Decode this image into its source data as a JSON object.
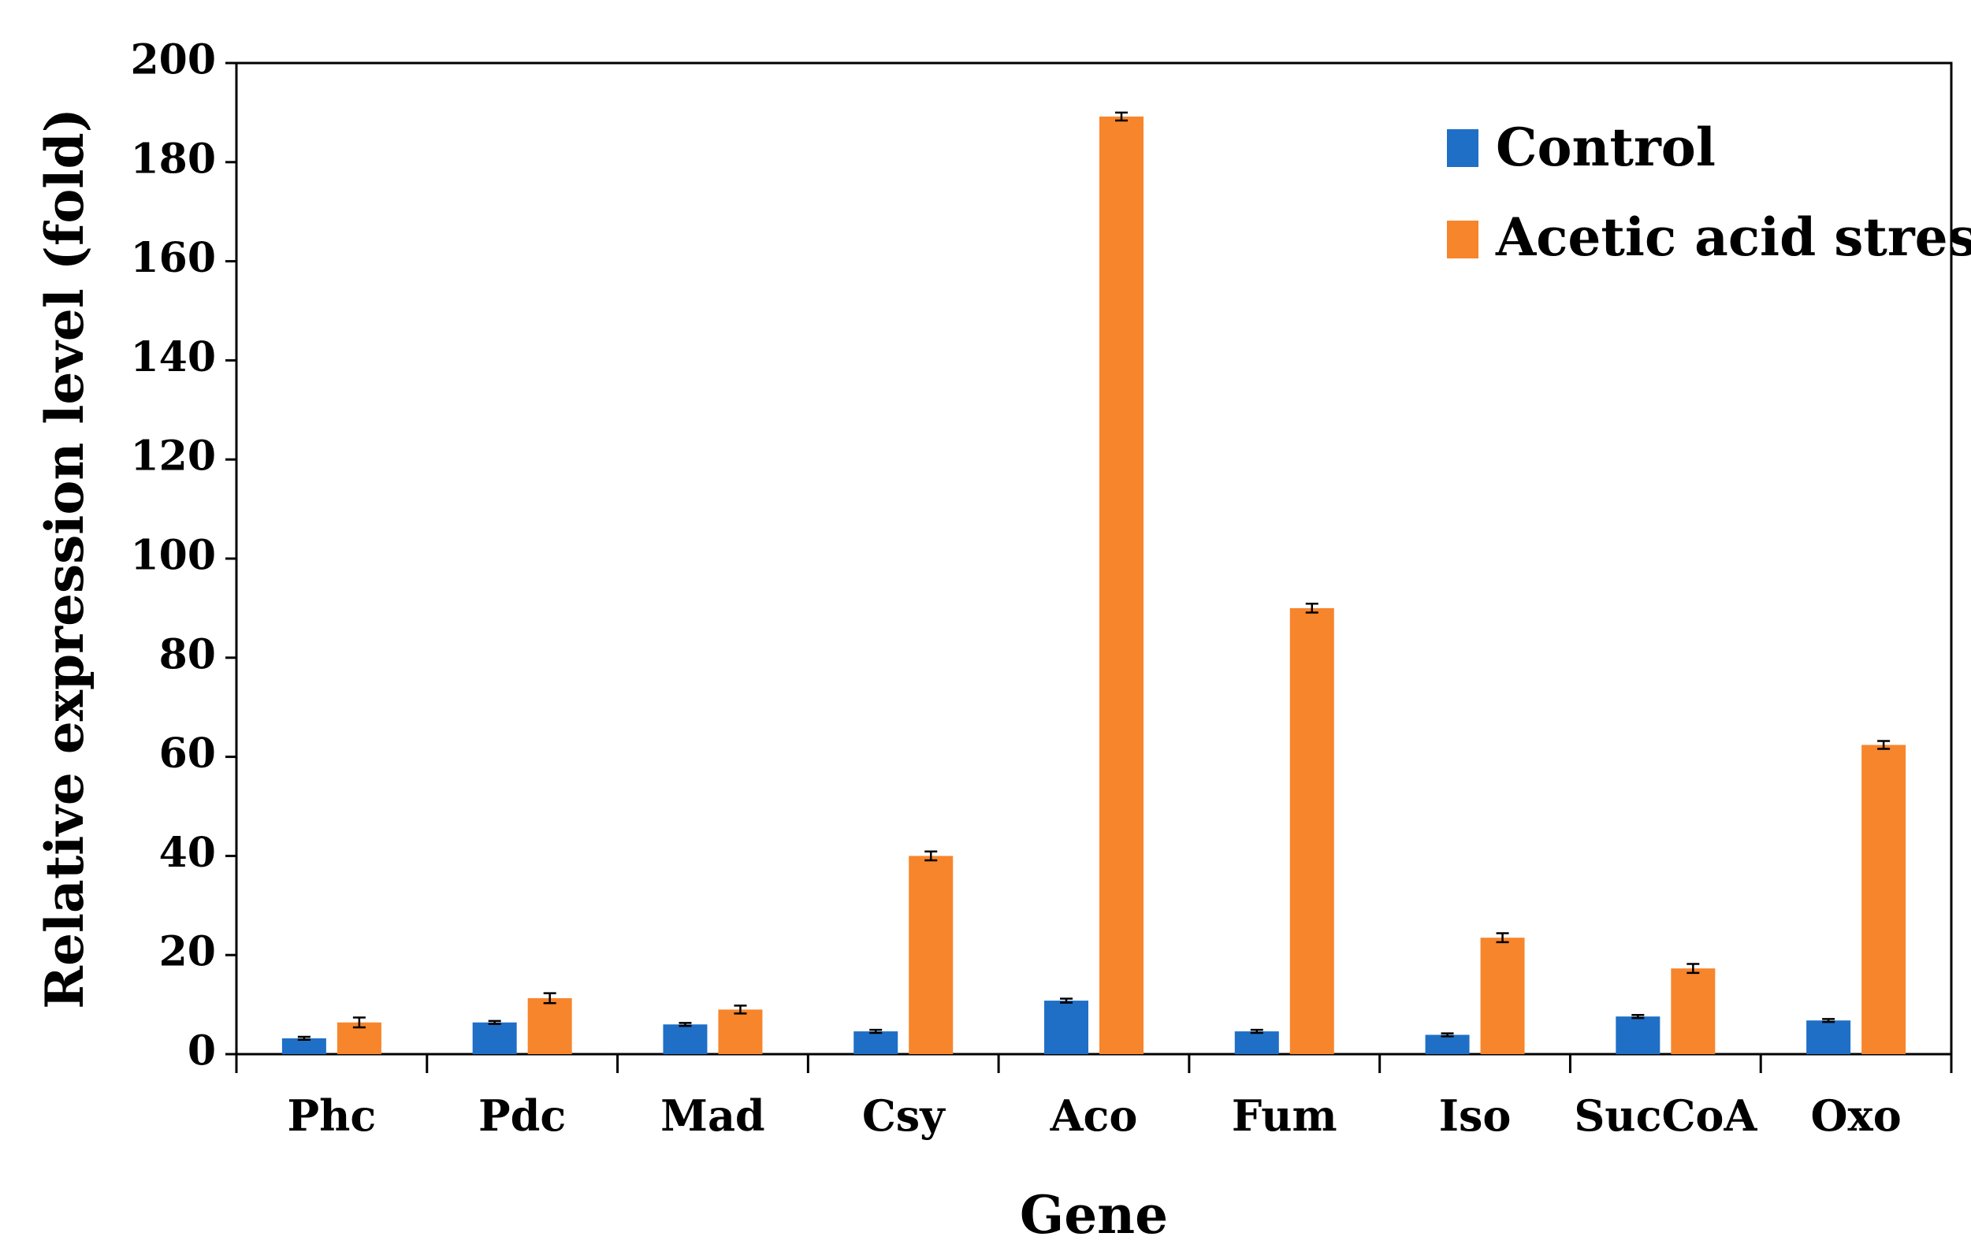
{
  "chart_data": {
    "type": "bar",
    "title": "",
    "xlabel": "Gene",
    "ylabel": "Relative expression level (fold)",
    "ylim": [
      0,
      200
    ],
    "yticks": [
      0,
      20,
      40,
      60,
      80,
      100,
      120,
      140,
      160,
      180,
      200
    ],
    "grid": false,
    "legend_position": "top-right",
    "categories": [
      "Phc",
      "Pdc",
      "Mad",
      "Csy",
      "Aco",
      "Fum",
      "Iso",
      "SucCoA",
      "Oxo"
    ],
    "series": [
      {
        "name": "Control",
        "color": "#1f6fc6",
        "values": [
          3.2,
          6.4,
          6.0,
          4.6,
          10.8,
          4.6,
          3.9,
          7.6,
          6.8
        ],
        "errors": [
          0.3,
          0.3,
          0.3,
          0.3,
          0.4,
          0.3,
          0.3,
          0.3,
          0.3
        ]
      },
      {
        "name": "Acetic acid stress",
        "color": "#f7852c",
        "values": [
          6.4,
          11.3,
          9.0,
          40.0,
          189.2,
          90.0,
          23.5,
          17.3,
          62.4
        ],
        "errors": [
          1.0,
          1.0,
          0.8,
          0.9,
          0.8,
          0.9,
          0.9,
          0.9,
          0.8
        ]
      }
    ]
  }
}
